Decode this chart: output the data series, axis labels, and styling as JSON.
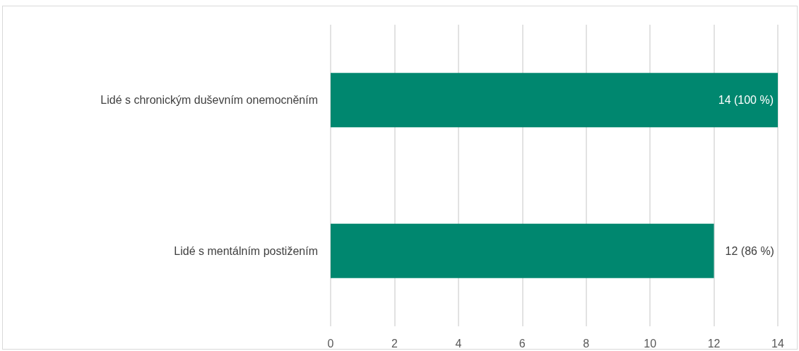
{
  "chart_data": {
    "type": "bar",
    "orientation": "horizontal",
    "categories": [
      "Lidé s chronickým duševním onemocněním",
      "Lidé s mentálním postižením"
    ],
    "values": [
      14,
      12
    ],
    "value_labels": [
      "14 (100 %)",
      "12 (86 %)"
    ],
    "color": "#00876f",
    "xlim": [
      0,
      14
    ],
    "xticks": [
      0,
      2,
      4,
      6,
      8,
      10,
      12,
      14
    ],
    "grid": "x"
  }
}
